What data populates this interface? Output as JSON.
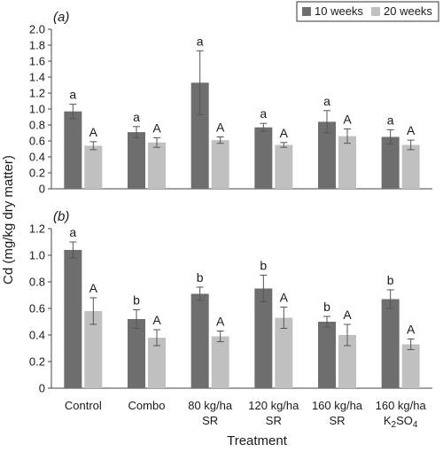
{
  "figure": {
    "ylabel": "Cd (mg/kg dry matter)",
    "xlabel": "Treatment",
    "categories": [
      [
        "Control"
      ],
      [
        "Combo"
      ],
      [
        "80 kg/ha",
        "SR"
      ],
      [
        "120 kg/ha",
        "SR"
      ],
      [
        "160 kg/ha",
        "SR"
      ],
      [
        "160 kg/ha",
        "K2SO4"
      ]
    ],
    "legend": {
      "placement": "top-right",
      "entries": [
        {
          "name": "10 weeks",
          "color": "#6e6e6e"
        },
        {
          "name": "20 weeks",
          "color": "#c0c0c0"
        }
      ]
    }
  },
  "chart_data": [
    {
      "type": "bar",
      "panel_label": "(a)",
      "ylim": [
        0,
        2.0
      ],
      "yticks": [
        "0",
        "0.2",
        "0.4",
        "0.6",
        "0.8",
        "1.0",
        "1.2",
        "1.4",
        "1.6",
        "1.8",
        "2.0"
      ],
      "categories": [
        "Control",
        "Combo",
        "80 kg/ha SR",
        "120 kg/ha SR",
        "160 kg/ha SR",
        "160 kg/ha K2SO4"
      ],
      "series": [
        {
          "name": "10 weeks",
          "values": [
            0.97,
            0.71,
            1.33,
            0.77,
            0.84,
            0.65
          ],
          "errors": [
            0.09,
            0.07,
            0.4,
            0.05,
            0.14,
            0.09
          ],
          "labels": [
            "a",
            "a",
            "a",
            "a",
            "a",
            "a"
          ]
        },
        {
          "name": "20 weeks",
          "values": [
            0.54,
            0.58,
            0.61,
            0.55,
            0.66,
            0.55
          ],
          "errors": [
            0.05,
            0.06,
            0.04,
            0.03,
            0.09,
            0.06
          ],
          "labels": [
            "A",
            "A",
            "A",
            "A",
            "A",
            "A"
          ]
        }
      ]
    },
    {
      "type": "bar",
      "panel_label": "(b)",
      "ylim": [
        0,
        1.2
      ],
      "yticks": [
        "0",
        "0.2",
        "0.4",
        "0.6",
        "0.8",
        "1.0",
        "1.2"
      ],
      "categories": [
        "Control",
        "Combo",
        "80 kg/ha SR",
        "120 kg/ha SR",
        "160 kg/ha SR",
        "160 kg/ha K2SO4"
      ],
      "series": [
        {
          "name": "10 weeks",
          "values": [
            1.04,
            0.52,
            0.71,
            0.75,
            0.5,
            0.67
          ],
          "errors": [
            0.06,
            0.07,
            0.05,
            0.1,
            0.04,
            0.07
          ],
          "labels": [
            "a",
            "b",
            "b",
            "b",
            "b",
            "b"
          ]
        },
        {
          "name": "20 weeks",
          "values": [
            0.58,
            0.38,
            0.39,
            0.53,
            0.4,
            0.33
          ],
          "errors": [
            0.1,
            0.06,
            0.04,
            0.08,
            0.08,
            0.04
          ],
          "labels": [
            "A",
            "A",
            "A",
            "A",
            "A",
            "A"
          ]
        }
      ]
    }
  ]
}
